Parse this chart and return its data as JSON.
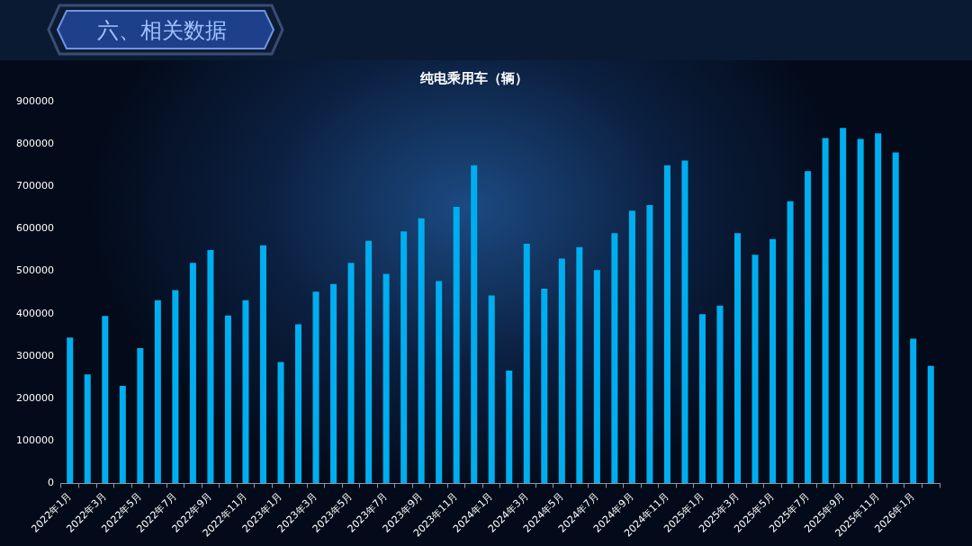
{
  "chart_data": {
    "type": "bar",
    "title": "纯电乘用车（辆）",
    "annotations": [
      "六、相关数据"
    ],
    "categories": [
      "2022年1月",
      null,
      "2022年3月",
      null,
      "2022年5月",
      null,
      "2022年7月",
      null,
      "2022年9月",
      null,
      "2022年11月",
      null,
      "2023年1月",
      null,
      "2023年3月",
      null,
      "2023年5月",
      null,
      "2023年7月",
      null,
      "2023年9月",
      null,
      "2023年11月",
      null,
      "2024年1月",
      null,
      "2024年3月",
      null,
      "2024年5月",
      null,
      "2024年7月",
      null,
      "2024年9月",
      null,
      "2024年11月",
      null,
      "2025年1月",
      null,
      "2025年3月",
      null,
      "2025年5月",
      null,
      "2025年7月",
      null,
      "2025年9月",
      null,
      "2025年11月",
      null,
      "2026年1月",
      null
    ],
    "values": [
      344000,
      257000,
      395000,
      230000,
      319000,
      432000,
      456000,
      520000,
      550000,
      396000,
      432000,
      561000,
      286000,
      375000,
      452000,
      470000,
      520000,
      572000,
      494000,
      594000,
      625000,
      477000,
      652000,
      750000,
      443000,
      266000,
      565000,
      459000,
      530000,
      557000,
      503000,
      590000,
      643000,
      656000,
      750000,
      761000,
      399000,
      419000,
      590000,
      539000,
      576000,
      665000,
      736000,
      814000,
      838000,
      812000,
      825000,
      780000,
      341000,
      277000
    ],
    "color": "#00aeef",
    "ylim": [
      0,
      900000
    ],
    "yticks": [
      0,
      100000,
      200000,
      300000,
      400000,
      500000,
      600000,
      700000,
      800000,
      900000
    ],
    "grid": false,
    "legend": false
  }
}
